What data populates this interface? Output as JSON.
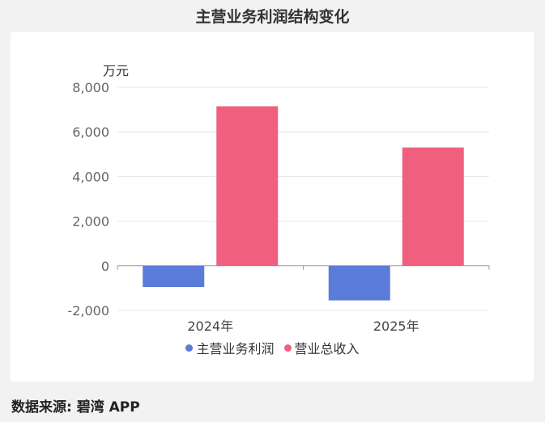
{
  "title": "主营业务利润结构变化",
  "source": "数据来源: 碧湾 APP",
  "colors": {
    "profit": "#5b7bd8",
    "revenue": "#f0607e"
  },
  "chart_data": {
    "type": "bar",
    "title": "主营业务利润结构变化",
    "ylabel": "万元",
    "categories": [
      "2024年",
      "2025年"
    ],
    "series": [
      {
        "name": "主营业务利润",
        "values": [
          -950,
          -1550
        ],
        "color": "#5b7bd8"
      },
      {
        "name": "营业总收入",
        "values": [
          7150,
          5300
        ],
        "color": "#f0607e"
      }
    ],
    "ylim": [
      -2000,
      8000
    ],
    "yticks": [
      -2000,
      0,
      2000,
      4000,
      6000,
      8000
    ],
    "ytick_labels": [
      "-2,000",
      "0",
      "2,000",
      "4,000",
      "6,000",
      "8,000"
    ],
    "grid": true,
    "legend_position": "bottom"
  }
}
